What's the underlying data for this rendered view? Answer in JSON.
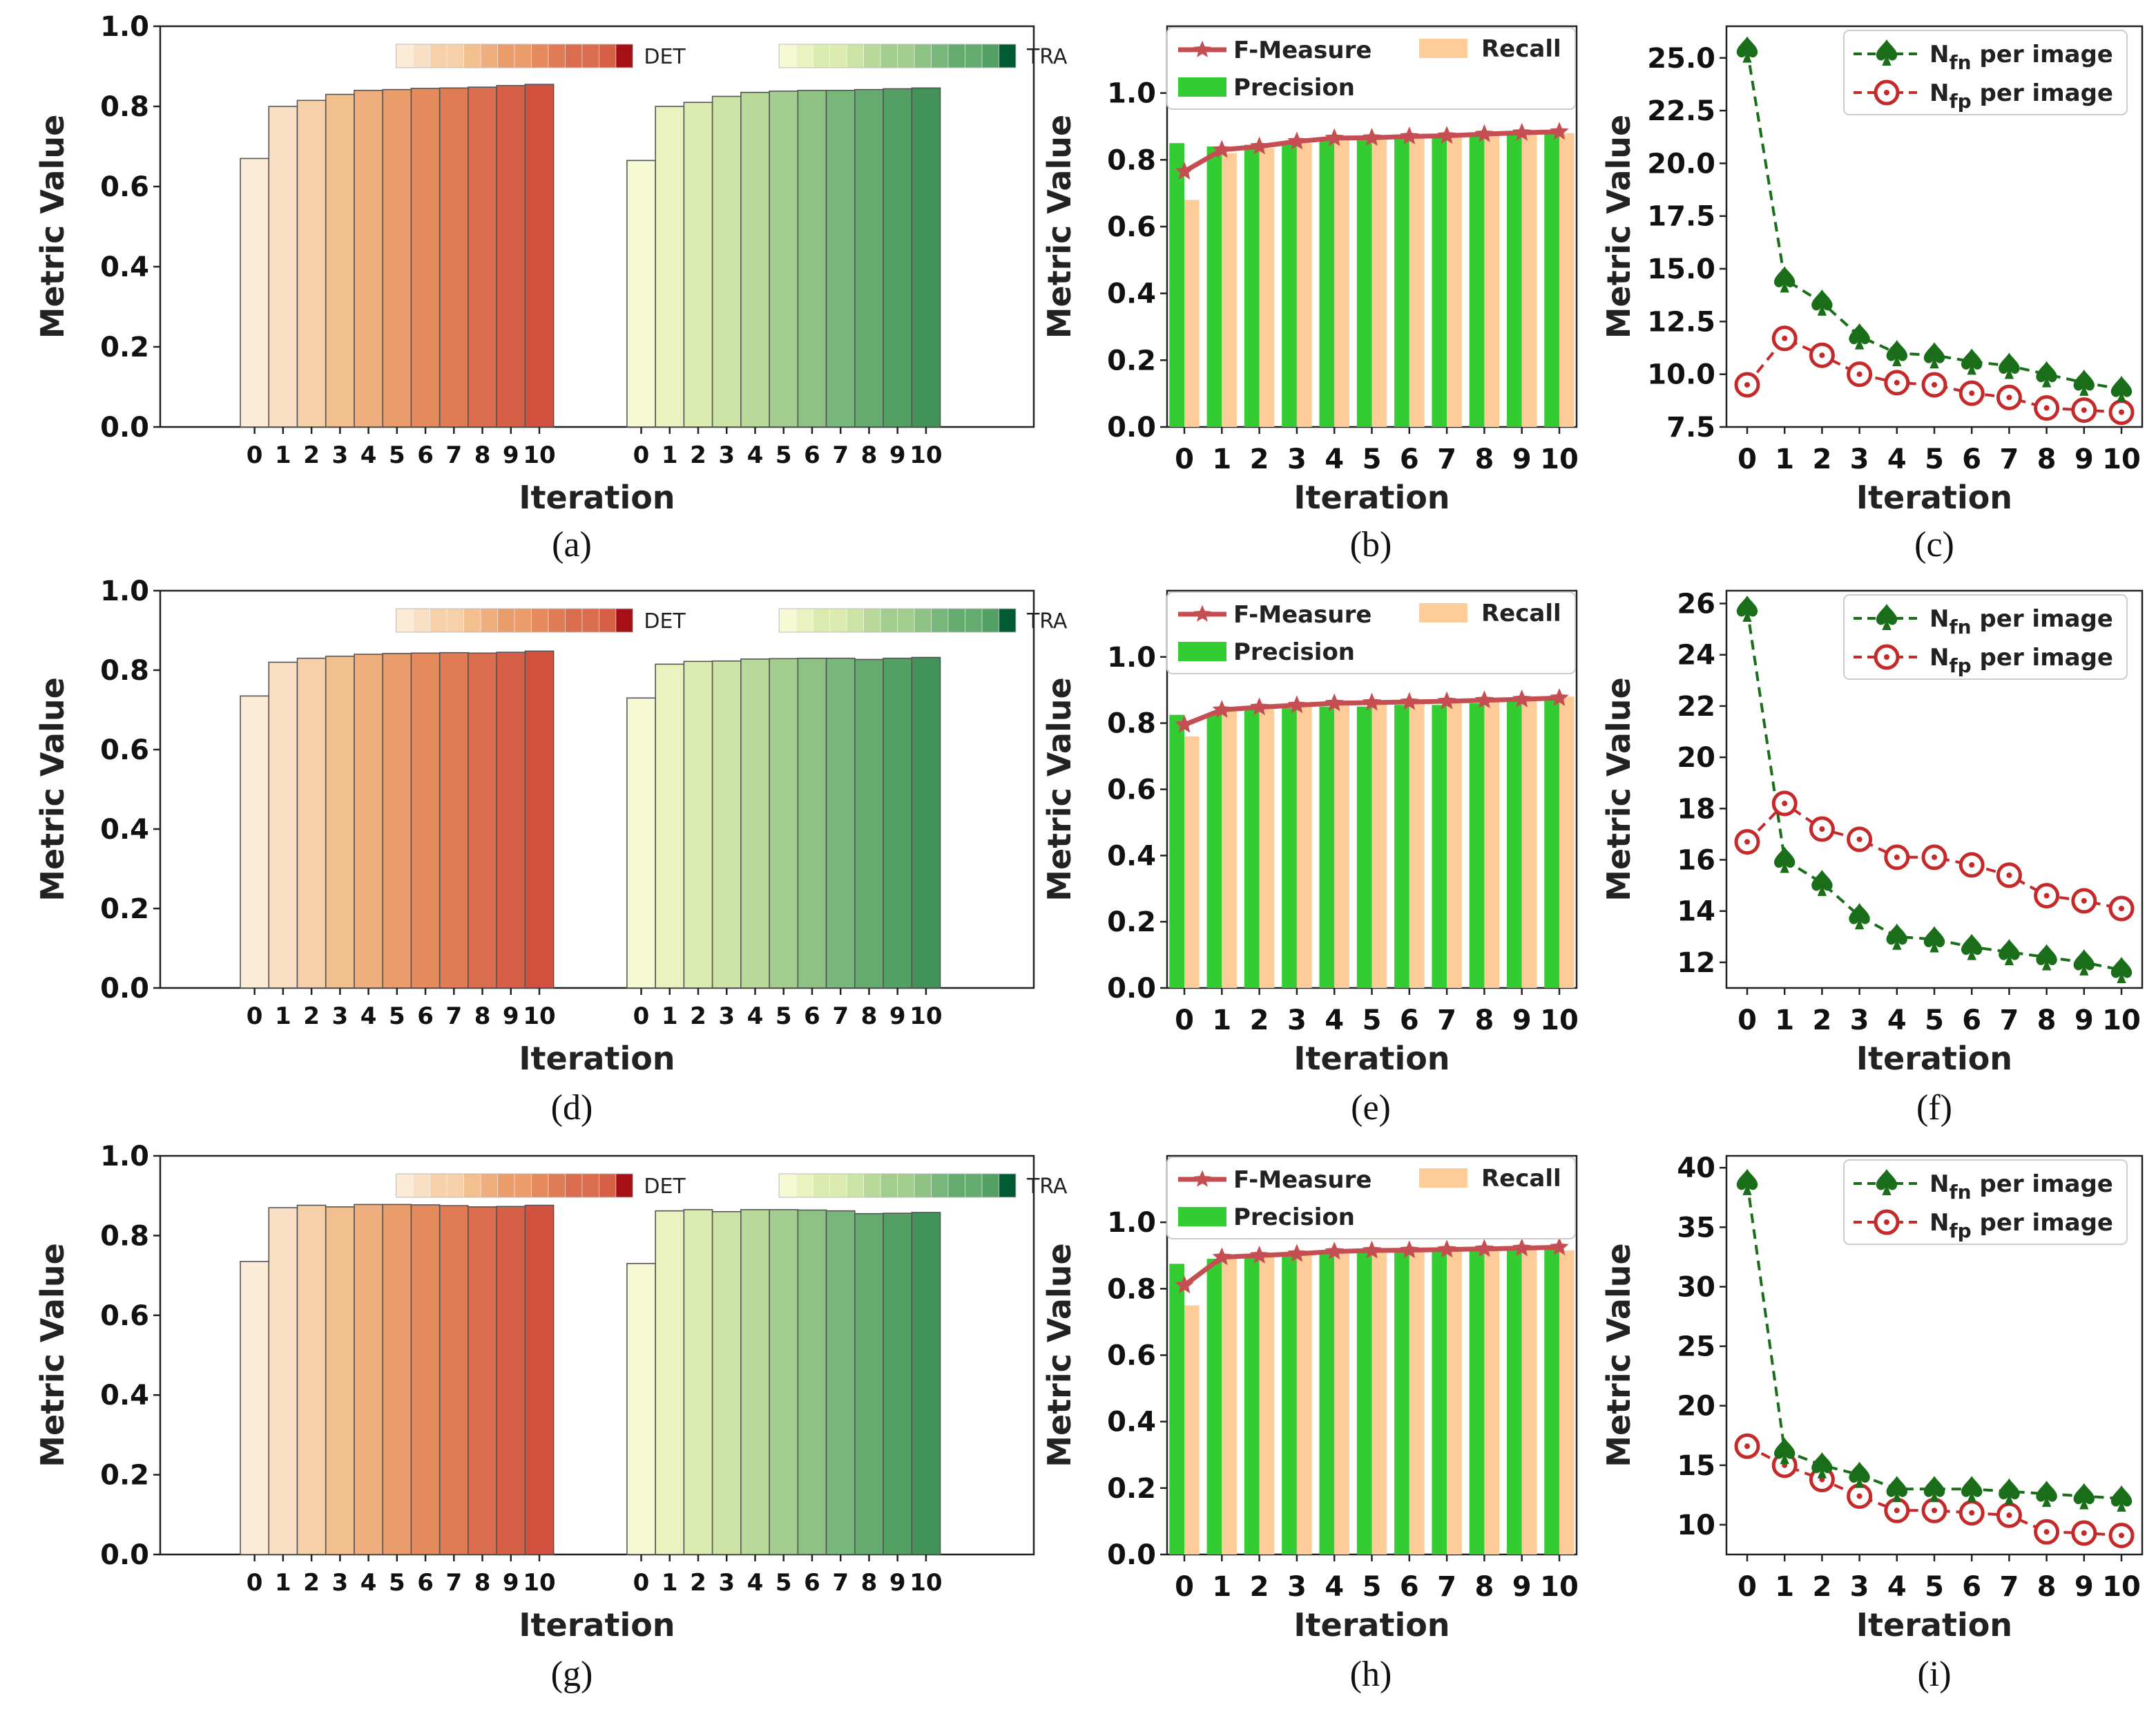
{
  "figure": {
    "captions": [
      "(a)",
      "(b)",
      "(c)",
      "(d)",
      "(e)",
      "(f)",
      "(g)",
      "(h)",
      "(i)"
    ]
  },
  "colors": {
    "det_scale": [
      "#fbebd7",
      "#f9dfc3",
      "#f5d0a9",
      "#f2c08f",
      "#eeae7d",
      "#ea9c6a",
      "#e58a5d",
      "#e07c55",
      "#db6d4f",
      "#d66047",
      "#d1523f"
    ],
    "tra_scale": [
      "#f7f9d4",
      "#eaf3c0",
      "#dcecb0",
      "#cce4a6",
      "#b8d99a",
      "#a3cd8f",
      "#8ec285",
      "#78b77b",
      "#65ab70",
      "#549f64",
      "#42925a"
    ],
    "det_cbar_end": "#a50f15",
    "tra_cbar_end": "#005a32",
    "precision": "#33cc33",
    "recall": "#fdcc99",
    "fmeasure": "#c44e52",
    "nfn": "#1a6e1a",
    "nfp": "#c42a2a"
  },
  "chart_data": [
    {
      "panel": "a",
      "type": "bar",
      "xlabel": "Iteration",
      "ylabel": "Metric Value",
      "ylim": [
        0,
        1.0
      ],
      "yticks": [
        "0.0",
        "0.2",
        "0.4",
        "0.6",
        "0.8",
        "1.0"
      ],
      "categories": [
        "0",
        "1",
        "2",
        "3",
        "4",
        "5",
        "6",
        "7",
        "8",
        "9",
        "10"
      ],
      "series": [
        {
          "name": "DET",
          "values": [
            0.67,
            0.8,
            0.815,
            0.83,
            0.84,
            0.842,
            0.845,
            0.846,
            0.848,
            0.852,
            0.855
          ]
        },
        {
          "name": "TRA",
          "values": [
            0.665,
            0.8,
            0.81,
            0.825,
            0.835,
            0.838,
            0.84,
            0.84,
            0.842,
            0.844,
            0.846
          ]
        }
      ]
    },
    {
      "panel": "b",
      "type": "bar",
      "xlabel": "Iteration",
      "ylabel": "Metric Value",
      "ylim": [
        0,
        1.2
      ],
      "yticks": [
        "0.0",
        "0.2",
        "0.4",
        "0.6",
        "0.8",
        "1.0"
      ],
      "categories": [
        "0",
        "1",
        "2",
        "3",
        "4",
        "5",
        "6",
        "7",
        "8",
        "9",
        "10"
      ],
      "series": [
        {
          "name": "Precision",
          "values": [
            0.85,
            0.84,
            0.845,
            0.855,
            0.865,
            0.868,
            0.872,
            0.874,
            0.88,
            0.884,
            0.888
          ]
        },
        {
          "name": "Recall",
          "values": [
            0.68,
            0.82,
            0.835,
            0.85,
            0.86,
            0.863,
            0.866,
            0.87,
            0.874,
            0.878,
            0.88
          ]
        },
        {
          "name": "F-Measure",
          "values": [
            0.765,
            0.83,
            0.84,
            0.855,
            0.865,
            0.866,
            0.87,
            0.872,
            0.877,
            0.881,
            0.884
          ]
        }
      ]
    },
    {
      "panel": "c",
      "type": "line",
      "xlabel": "Iteration",
      "ylabel": "Metric Value",
      "ylim": [
        7.5,
        26.5
      ],
      "yticks": [
        "7.5",
        "10.0",
        "12.5",
        "15.0",
        "17.5",
        "20.0",
        "22.5",
        "25.0"
      ],
      "categories": [
        "0",
        "1",
        "2",
        "3",
        "4",
        "5",
        "6",
        "7",
        "8",
        "9",
        "10"
      ],
      "series": [
        {
          "name": "Nfn per image",
          "values": [
            25.4,
            14.5,
            13.4,
            11.8,
            11.0,
            10.9,
            10.6,
            10.4,
            10.0,
            9.6,
            9.3
          ]
        },
        {
          "name": "Nfp per image",
          "values": [
            9.5,
            11.7,
            10.9,
            10.0,
            9.6,
            9.5,
            9.1,
            8.9,
            8.4,
            8.3,
            8.2
          ]
        }
      ]
    },
    {
      "panel": "d",
      "type": "bar",
      "xlabel": "Iteration",
      "ylabel": "Metric Value",
      "ylim": [
        0,
        1.0
      ],
      "yticks": [
        "0.0",
        "0.2",
        "0.4",
        "0.6",
        "0.8",
        "1.0"
      ],
      "categories": [
        "0",
        "1",
        "2",
        "3",
        "4",
        "5",
        "6",
        "7",
        "8",
        "9",
        "10"
      ],
      "series": [
        {
          "name": "DET",
          "values": [
            0.735,
            0.82,
            0.83,
            0.835,
            0.84,
            0.842,
            0.843,
            0.844,
            0.843,
            0.845,
            0.848
          ]
        },
        {
          "name": "TRA",
          "values": [
            0.73,
            0.815,
            0.822,
            0.823,
            0.828,
            0.829,
            0.83,
            0.83,
            0.827,
            0.83,
            0.832
          ]
        }
      ]
    },
    {
      "panel": "e",
      "type": "bar",
      "xlabel": "Iteration",
      "ylabel": "Metric Value",
      "ylim": [
        0,
        1.2
      ],
      "yticks": [
        "0.0",
        "0.2",
        "0.4",
        "0.6",
        "0.8",
        "1.0"
      ],
      "categories": [
        "0",
        "1",
        "2",
        "3",
        "4",
        "5",
        "6",
        "7",
        "8",
        "9",
        "10"
      ],
      "series": [
        {
          "name": "Precision",
          "values": [
            0.825,
            0.83,
            0.84,
            0.845,
            0.85,
            0.85,
            0.855,
            0.855,
            0.86,
            0.865,
            0.87
          ]
        },
        {
          "name": "Recall",
          "values": [
            0.76,
            0.84,
            0.85,
            0.855,
            0.86,
            0.865,
            0.868,
            0.87,
            0.872,
            0.875,
            0.88
          ]
        },
        {
          "name": "F-Measure",
          "values": [
            0.795,
            0.84,
            0.848,
            0.854,
            0.86,
            0.862,
            0.864,
            0.866,
            0.869,
            0.872,
            0.876
          ]
        }
      ]
    },
    {
      "panel": "f",
      "type": "line",
      "xlabel": "Iteration",
      "ylabel": "Metric Value",
      "ylim": [
        11.0,
        26.5
      ],
      "yticks": [
        "12",
        "14",
        "16",
        "18",
        "20",
        "22",
        "24",
        "26"
      ],
      "categories": [
        "0",
        "1",
        "2",
        "3",
        "4",
        "5",
        "6",
        "7",
        "8",
        "9",
        "10"
      ],
      "series": [
        {
          "name": "Nfn per image",
          "values": [
            25.8,
            16.0,
            15.1,
            13.8,
            13.0,
            12.9,
            12.6,
            12.4,
            12.2,
            12.0,
            11.7
          ]
        },
        {
          "name": "Nfp per image",
          "values": [
            16.7,
            18.2,
            17.2,
            16.8,
            16.1,
            16.1,
            15.8,
            15.4,
            14.6,
            14.4,
            14.1
          ]
        }
      ]
    },
    {
      "panel": "g",
      "type": "bar",
      "xlabel": "Iteration",
      "ylabel": "Metric Value",
      "ylim": [
        0,
        1.0
      ],
      "yticks": [
        "0.0",
        "0.2",
        "0.4",
        "0.6",
        "0.8",
        "1.0"
      ],
      "categories": [
        "0",
        "1",
        "2",
        "3",
        "4",
        "5",
        "6",
        "7",
        "8",
        "9",
        "10"
      ],
      "series": [
        {
          "name": "DET",
          "values": [
            0.735,
            0.87,
            0.876,
            0.872,
            0.878,
            0.878,
            0.877,
            0.875,
            0.872,
            0.873,
            0.876
          ]
        },
        {
          "name": "TRA",
          "values": [
            0.73,
            0.862,
            0.865,
            0.86,
            0.865,
            0.865,
            0.864,
            0.862,
            0.855,
            0.856,
            0.858
          ]
        }
      ]
    },
    {
      "panel": "h",
      "type": "bar",
      "xlabel": "Iteration",
      "ylabel": "Metric Value",
      "ylim": [
        0,
        1.2
      ],
      "yticks": [
        "0.0",
        "0.2",
        "0.4",
        "0.6",
        "0.8",
        "1.0"
      ],
      "categories": [
        "0",
        "1",
        "2",
        "3",
        "4",
        "5",
        "6",
        "7",
        "8",
        "9",
        "10"
      ],
      "series": [
        {
          "name": "Precision",
          "values": [
            0.875,
            0.89,
            0.9,
            0.905,
            0.91,
            0.915,
            0.918,
            0.92,
            0.922,
            0.925,
            0.928
          ]
        },
        {
          "name": "Recall",
          "values": [
            0.75,
            0.89,
            0.895,
            0.9,
            0.905,
            0.91,
            0.912,
            0.915,
            0.918,
            0.92,
            0.915
          ]
        },
        {
          "name": "F-Measure",
          "values": [
            0.81,
            0.895,
            0.9,
            0.905,
            0.912,
            0.915,
            0.916,
            0.918,
            0.92,
            0.922,
            0.925
          ]
        }
      ]
    },
    {
      "panel": "i",
      "type": "line",
      "xlabel": "Iteration",
      "ylabel": "Metric Value",
      "ylim": [
        7.5,
        41.0
      ],
      "yticks": [
        "10",
        "15",
        "20",
        "25",
        "30",
        "35",
        "40"
      ],
      "categories": [
        "0",
        "1",
        "2",
        "3",
        "4",
        "5",
        "6",
        "7",
        "8",
        "9",
        "10"
      ],
      "series": [
        {
          "name": "Nfn per image",
          "values": [
            38.8,
            16.2,
            15.0,
            14.2,
            13.0,
            13.0,
            13.0,
            12.8,
            12.6,
            12.4,
            12.2
          ]
        },
        {
          "name": "Nfp per image",
          "values": [
            16.6,
            15.0,
            13.8,
            12.4,
            11.2,
            11.2,
            11.0,
            10.8,
            9.4,
            9.3,
            9.1
          ]
        }
      ]
    }
  ]
}
